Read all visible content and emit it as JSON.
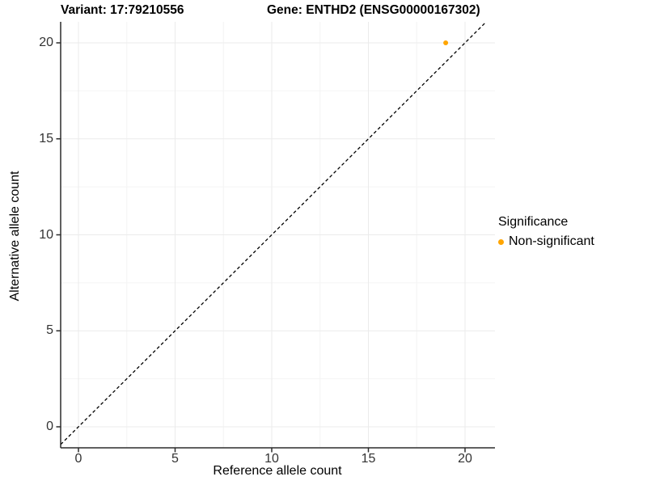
{
  "header": {
    "variant_title": "Variant: 17:79210556",
    "gene_title": "Gene: ENTHD2 (ENSG00000167302)"
  },
  "chart_data": {
    "type": "scatter",
    "xlabel": "Reference allele count",
    "ylabel": "Alternative allele count",
    "xticks": [
      0,
      5,
      10,
      15,
      20
    ],
    "yticks": [
      0,
      5,
      10,
      15,
      20
    ],
    "x_minor_ticks": [
      2.5,
      7.5,
      12.5,
      17.5
    ],
    "y_minor_ticks": [
      2.5,
      7.5,
      12.5,
      17.5
    ],
    "xlim": [
      -0.9,
      21.5
    ],
    "ylim": [
      -1.1,
      21.1
    ],
    "grid": true,
    "points": [
      {
        "x": 19,
        "y": 20,
        "significance": "Non-significant"
      }
    ],
    "identity_line": {
      "slope": 1,
      "intercept": 0,
      "style": "dashed",
      "color": "#000000"
    },
    "legend": {
      "title": "Significance",
      "position": "right",
      "items": [
        {
          "label": "Non-significant",
          "color": "#FFA500"
        }
      ]
    },
    "colors": {
      "point": "#FFA500",
      "grid_major": "#EBEBEB",
      "grid_minor": "#F4F4F4",
      "axis": "#2b2b2b",
      "tick_text": "#333333"
    }
  }
}
